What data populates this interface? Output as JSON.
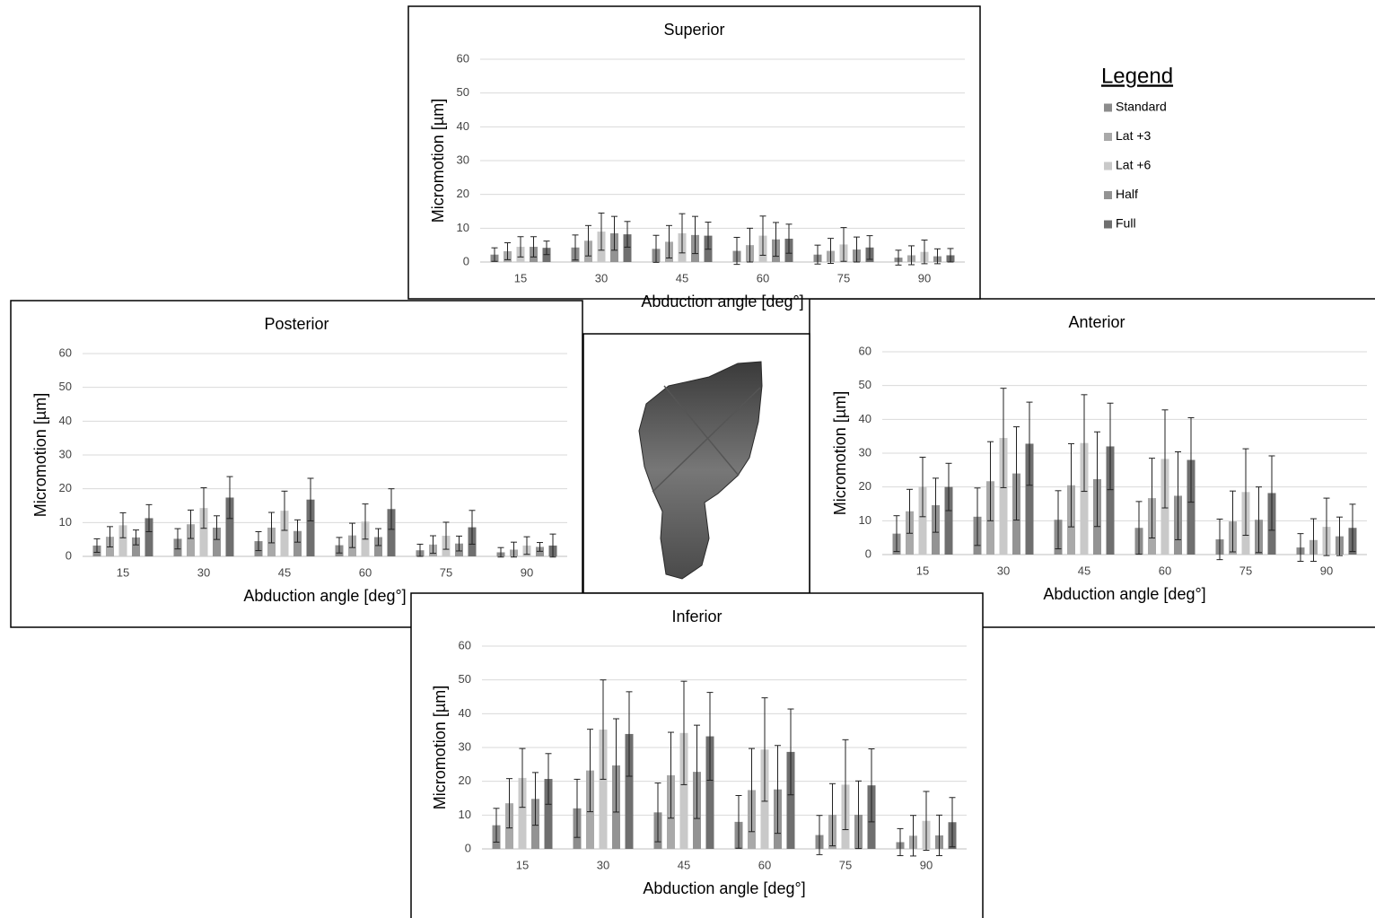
{
  "legend": {
    "title": "Legend",
    "items": [
      {
        "name": "Standard",
        "color": "#8c8c8c"
      },
      {
        "name": "Lat +3",
        "color": "#a9a9a9"
      },
      {
        "name": "Lat +6",
        "color": "#c9c9c9"
      },
      {
        "name": "Half",
        "color": "#939393"
      },
      {
        "name": "Full",
        "color": "#6f6f6f"
      }
    ]
  },
  "chart_data": [
    {
      "type": "bar",
      "title": "Superior",
      "x_label": "Abduction angle [deg°]",
      "y_label": "Micromotion [µm]",
      "categories": [
        "15",
        "30",
        "45",
        "60",
        "75",
        "90"
      ],
      "ylim": [
        0,
        60
      ],
      "yticks": [
        0,
        10,
        20,
        30,
        40,
        50,
        60
      ],
      "grid": true,
      "series": [
        {
          "values": [
            2.2,
            4.3,
            3.9,
            3.3,
            2.2,
            1.3
          ],
          "errors": [
            2,
            3.7,
            4,
            4,
            2.8,
            2.2
          ]
        },
        {
          "values": [
            3.2,
            6.3,
            6,
            5,
            3.3,
            2
          ],
          "errors": [
            2.5,
            4.5,
            4.8,
            5,
            3.7,
            2.8
          ]
        },
        {
          "values": [
            4.5,
            9,
            8.5,
            7.8,
            5.2,
            3
          ],
          "errors": [
            3,
            5.5,
            5.8,
            5.8,
            5,
            3.5
          ]
        },
        {
          "values": [
            4.5,
            8.5,
            8,
            6.7,
            3.7,
            1.7
          ],
          "errors": [
            3,
            5,
            5.5,
            5,
            3.7,
            2.2
          ]
        },
        {
          "values": [
            4.2,
            8.2,
            7.8,
            6.9,
            4.3,
            2
          ],
          "errors": [
            2,
            3.8,
            4,
            4.3,
            3.5,
            2
          ]
        }
      ]
    },
    {
      "type": "bar",
      "title": "Posterior",
      "x_label": "Abduction angle [deg°]",
      "y_label": "Micromotion [µm]",
      "categories": [
        "15",
        "30",
        "45",
        "60",
        "75",
        "90"
      ],
      "ylim": [
        0,
        60
      ],
      "yticks": [
        0,
        10,
        20,
        30,
        40,
        50,
        60
      ],
      "grid": true,
      "series": [
        {
          "values": [
            3.2,
            5.2,
            4.5,
            3.3,
            1.8,
            1.2
          ],
          "errors": [
            2,
            3,
            2.8,
            2.3,
            1.8,
            1.4
          ]
        },
        {
          "values": [
            5.8,
            9.5,
            8.5,
            6.2,
            3.5,
            2
          ],
          "errors": [
            3,
            4.2,
            4.5,
            3.6,
            2.6,
            2.2
          ]
        },
        {
          "values": [
            9.2,
            14.3,
            13.5,
            10.3,
            6.1,
            3.2
          ],
          "errors": [
            3.7,
            6,
            5.8,
            5.2,
            4,
            2.6
          ]
        },
        {
          "values": [
            5.6,
            8.5,
            7.5,
            5.7,
            3.8,
            2.8
          ],
          "errors": [
            2.2,
            3.5,
            3.3,
            2.5,
            2.2,
            1.3
          ]
        },
        {
          "values": [
            11.3,
            17.4,
            16.8,
            14,
            8.6,
            3.2
          ],
          "errors": [
            4,
            6.2,
            6.3,
            6,
            5,
            3.4
          ]
        }
      ]
    },
    {
      "type": "bar",
      "title": "Anterior",
      "x_label": "Abduction angle [deg°]",
      "y_label": "Micromotion [µm]",
      "categories": [
        "15",
        "30",
        "45",
        "60",
        "75",
        "90"
      ],
      "ylim": [
        0,
        60
      ],
      "yticks": [
        0,
        10,
        20,
        30,
        40,
        50,
        60
      ],
      "grid": true,
      "series": [
        {
          "values": [
            6.2,
            11.2,
            10.3,
            7.9,
            4.5,
            2.1
          ],
          "errors": [
            5.3,
            8.5,
            8.6,
            7.8,
            6,
            4.1
          ]
        },
        {
          "values": [
            12.8,
            21.7,
            20.5,
            16.7,
            9.8,
            4.3
          ],
          "errors": [
            6.5,
            11.7,
            12.3,
            11.8,
            9,
            6.3
          ]
        },
        {
          "values": [
            20,
            34.5,
            33,
            28.3,
            18.5,
            8.2
          ],
          "errors": [
            8.8,
            14.7,
            14.3,
            14.5,
            12.8,
            8.5
          ]
        },
        {
          "values": [
            14.6,
            24,
            22.3,
            17.4,
            10.3,
            5.4
          ],
          "errors": [
            8,
            13.8,
            14,
            13,
            9.7,
            5.7
          ]
        },
        {
          "values": [
            20,
            32.8,
            32,
            28,
            18.2,
            7.9
          ],
          "errors": [
            7,
            12.3,
            12.8,
            12.5,
            11,
            7
          ]
        }
      ]
    },
    {
      "type": "bar",
      "title": "Inferior",
      "x_label": "Abduction angle [deg°]",
      "y_label": "Micromotion [µm]",
      "categories": [
        "15",
        "30",
        "45",
        "60",
        "75",
        "90"
      ],
      "ylim": [
        0,
        60
      ],
      "yticks": [
        0,
        10,
        20,
        30,
        40,
        50,
        60
      ],
      "grid": true,
      "series": [
        {
          "values": [
            7,
            12,
            10.8,
            8,
            4.1,
            2
          ],
          "errors": [
            5,
            8.6,
            8.7,
            7.8,
            5.8,
            4
          ]
        },
        {
          "values": [
            13.5,
            23.2,
            21.8,
            17.4,
            10.1,
            3.9
          ],
          "errors": [
            7.3,
            12.2,
            12.7,
            12.3,
            9.2,
            6
          ]
        },
        {
          "values": [
            21,
            35.3,
            34.3,
            29.4,
            19,
            8.3
          ],
          "errors": [
            8.7,
            14.7,
            15.3,
            15.3,
            13.3,
            8.7
          ]
        },
        {
          "values": [
            14.8,
            24.7,
            22.8,
            17.6,
            10.1,
            4
          ],
          "errors": [
            7.8,
            13.8,
            13.8,
            13,
            10,
            6
          ]
        },
        {
          "values": [
            20.7,
            34,
            33.3,
            28.7,
            18.8,
            7.9
          ],
          "errors": [
            7.5,
            12.5,
            13,
            12.7,
            10.8,
            7.3
          ]
        }
      ]
    }
  ]
}
